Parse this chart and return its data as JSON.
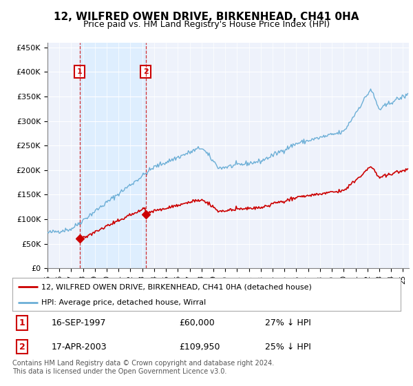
{
  "title": "12, WILFRED OWEN DRIVE, BIRKENHEAD, CH41 0HA",
  "subtitle": "Price paid vs. HM Land Registry's House Price Index (HPI)",
  "legend_line1": "12, WILFRED OWEN DRIVE, BIRKENHEAD, CH41 0HA (detached house)",
  "legend_line2": "HPI: Average price, detached house, Wirral",
  "annotation1_date": "16-SEP-1997",
  "annotation1_price": "£60,000",
  "annotation1_hpi": "27% ↓ HPI",
  "annotation2_date": "17-APR-2003",
  "annotation2_price": "£109,950",
  "annotation2_hpi": "25% ↓ HPI",
  "footer": "Contains HM Land Registry data © Crown copyright and database right 2024.\nThis data is licensed under the Open Government Licence v3.0.",
  "sale1_year": 1997.71,
  "sale1_price": 60000,
  "sale2_year": 2003.29,
  "sale2_price": 109950,
  "hpi_color": "#6baed6",
  "sale_color": "#cc0000",
  "vline_color": "#cc0000",
  "shade_color": "#ddeeff",
  "background_color": "#ffffff",
  "plot_bg_color": "#eef2fb",
  "ylim": [
    0,
    460000
  ],
  "yticks": [
    0,
    50000,
    100000,
    150000,
    200000,
    250000,
    300000,
    350000,
    400000,
    450000
  ],
  "xstart": 1995,
  "xend": 2025.5
}
